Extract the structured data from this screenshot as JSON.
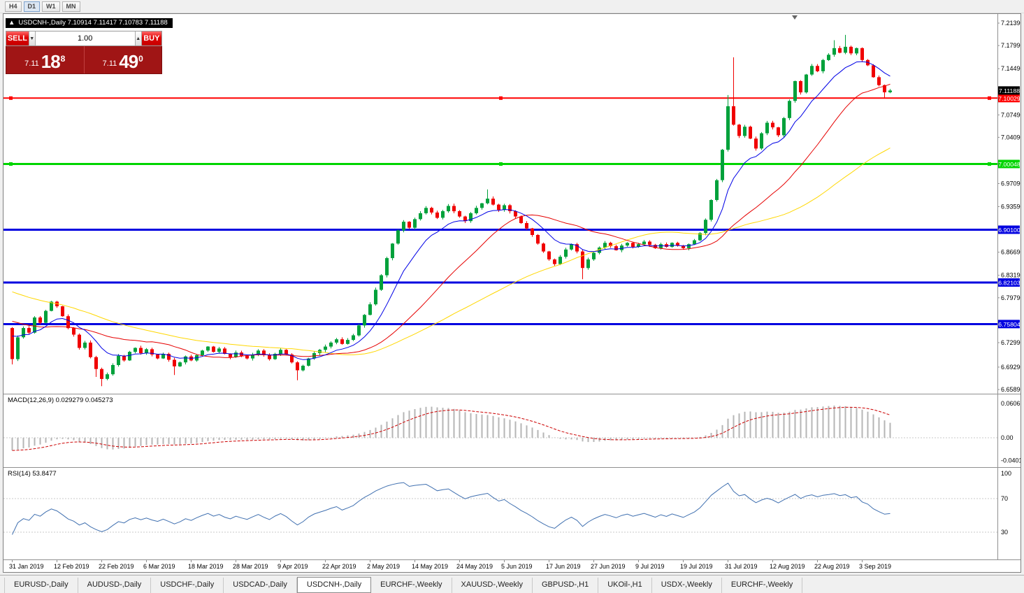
{
  "timeframe_toolbar": {
    "buttons": [
      {
        "label": "H4",
        "active": false
      },
      {
        "label": "D1",
        "active": true
      },
      {
        "label": "W1",
        "active": false
      },
      {
        "label": "MN",
        "active": false
      }
    ]
  },
  "chart": {
    "title_bar": {
      "collapse_arrow": "▲",
      "text": "USDCNH-,Daily  7.10914 7.11417 7.10783 7.11188"
    },
    "one_click": {
      "sell_label": "SELL",
      "buy_label": "BUY",
      "volume": "1.00",
      "volume_down_arrow": "▼",
      "volume_up_arrow": "▲",
      "sell_price": {
        "small": "7.11",
        "big": "18",
        "sup": "8"
      },
      "buy_price": {
        "small": "7.11",
        "big": "49",
        "sup": "0"
      }
    }
  },
  "chart_data": {
    "type": "candlestick",
    "title": "USDCNH-,Daily",
    "symbol": "USDCNH-",
    "timeframe": "Daily",
    "current_ohlc": {
      "open": 7.10914,
      "high": 7.11417,
      "low": 7.10783,
      "close": 7.11188
    },
    "first_open": 6.752,
    "closes": [
      6.705,
      6.738,
      6.752,
      6.745,
      6.768,
      6.76,
      6.778,
      6.792,
      6.785,
      6.77,
      6.752,
      6.742,
      6.722,
      6.73,
      6.708,
      6.69,
      6.675,
      6.682,
      6.696,
      6.71,
      6.703,
      6.716,
      6.722,
      6.714,
      6.72,
      6.712,
      6.706,
      6.713,
      6.704,
      6.694,
      6.7,
      6.709,
      6.703,
      6.711,
      6.718,
      6.724,
      6.716,
      6.721,
      6.713,
      6.708,
      6.715,
      6.71,
      6.706,
      6.712,
      6.718,
      6.711,
      6.705,
      6.713,
      6.719,
      6.712,
      6.7,
      6.688,
      6.695,
      6.706,
      6.714,
      6.719,
      6.724,
      6.73,
      6.735,
      6.728,
      6.734,
      6.741,
      6.756,
      6.772,
      6.788,
      6.81,
      6.832,
      6.858,
      6.88,
      6.9,
      6.913,
      6.904,
      6.917,
      6.926,
      6.934,
      6.927,
      6.919,
      6.929,
      6.937,
      6.929,
      6.921,
      6.914,
      6.926,
      6.934,
      6.941,
      6.948,
      6.939,
      6.931,
      6.938,
      6.929,
      6.921,
      6.911,
      6.903,
      6.893,
      6.88,
      6.868,
      6.856,
      6.849,
      6.86,
      6.871,
      6.879,
      6.868,
      6.843,
      6.856,
      6.866,
      6.874,
      6.881,
      6.876,
      6.87,
      6.877,
      6.881,
      6.875,
      6.879,
      6.883,
      6.878,
      6.873,
      6.879,
      6.875,
      6.881,
      6.877,
      6.873,
      6.879,
      6.885,
      6.896,
      6.916,
      6.946,
      6.976,
      7.022,
      7.088,
      7.06,
      7.043,
      7.057,
      7.039,
      7.024,
      7.047,
      7.063,
      7.056,
      7.044,
      7.07,
      7.096,
      7.126,
      7.109,
      7.136,
      7.149,
      7.141,
      7.158,
      7.166,
      7.176,
      7.169,
      7.178,
      7.168,
      7.176,
      7.158,
      7.15,
      7.132,
      7.12,
      7.10914,
      7.11188
    ],
    "warmup_closes": [
      6.915,
      6.908,
      6.918,
      6.902,
      6.895,
      6.903,
      6.89,
      6.882,
      6.889,
      6.878,
      6.872,
      6.88,
      6.868,
      6.86,
      6.866,
      6.868,
      6.862,
      6.871,
      6.855,
      6.848,
      6.852,
      6.84,
      6.835,
      6.842,
      6.83,
      6.822,
      6.828,
      6.815,
      6.81,
      6.818,
      6.805,
      6.798,
      6.806,
      6.795,
      6.788,
      6.795,
      6.782,
      6.776,
      6.784,
      6.772,
      6.765,
      6.772,
      6.76,
      6.755,
      6.762,
      6.752,
      6.746,
      6.753,
      6.744,
      6.74,
      6.748,
      6.738,
      6.734,
      6.742,
      6.75
    ],
    "wick_overrides": {
      "0": {
        "low": 6.697
      },
      "15": {
        "low": 6.678
      },
      "16": {
        "low": 6.664
      },
      "29": {
        "low": 6.681
      },
      "51": {
        "low": 6.673
      },
      "85": {
        "high": 6.962
      },
      "102": {
        "low": 6.826
      },
      "128": {
        "high": 7.105
      },
      "129": {
        "high": 7.162
      },
      "147": {
        "high": 7.188
      },
      "149": {
        "high": 7.196
      },
      "156": {
        "low": 7.1
      },
      "157": {
        "high": 7.11417,
        "low": 7.10783
      }
    },
    "x_labels": [
      "31 Jan 2019",
      "12 Feb 2019",
      "22 Feb 2019",
      "6 Mar 2019",
      "18 Mar 2019",
      "28 Mar 2019",
      "9 Apr 2019",
      "22 Apr 2019",
      "2 May 2019",
      "14 May 2019",
      "24 May 2019",
      "5 Jun 2019",
      "17 Jun 2019",
      "27 Jun 2019",
      "9 Jul 2019",
      "19 Jul 2019",
      "31 Jul 2019",
      "12 Aug 2019",
      "22 Aug 2019",
      "3 Sep 2019"
    ],
    "y_axis_ticks": [
      "7.21390",
      "7.17990",
      "7.14490",
      "7.07490",
      "7.04090",
      "6.97090",
      "6.93590",
      "6.86690",
      "6.83190",
      "6.79790",
      "6.72990",
      "6.69290",
      "6.65890"
    ],
    "horizontal_levels": [
      {
        "price": 7.10029,
        "label": "7.10029",
        "color": "#FF0000",
        "width": 2,
        "handles": true
      },
      {
        "price": 7.00048,
        "label": "7.00048",
        "color": "#00D500",
        "width": 3,
        "handles": true
      },
      {
        "price": 6.901,
        "label": "6.90100",
        "color": "#0000E0",
        "width": 3,
        "handles": false
      },
      {
        "price": 6.82103,
        "label": "6.82103",
        "color": "#0000E0",
        "width": 3,
        "handles": false
      },
      {
        "price": 6.75804,
        "label": "6.75804",
        "color": "#0000E0",
        "width": 3,
        "handles": false
      }
    ],
    "current_price": {
      "value": 7.11188,
      "label": "7.11188",
      "badge_color": "#000000"
    },
    "indicators": {
      "macd": {
        "label": "MACD(12,26,9) 0.029279 0.045273",
        "values_shown": [
          0.029279,
          0.045273
        ],
        "axis_labels": [
          "0.060674",
          "0.00",
          "-0.040152"
        ]
      },
      "rsi": {
        "label": "RSI(14) 53.8477",
        "value_shown": 53.8477,
        "axis_labels": [
          "100",
          "70",
          "30"
        ],
        "levels": [
          70,
          30
        ]
      }
    },
    "colors": {
      "up": "#00A13B",
      "down": "#F00000",
      "ma_fast": "#0000E6",
      "ma_mid": "#E60000",
      "ma_slow": "#FFD700",
      "macd_hist": "#B6B6B6",
      "macd_signal": "#CC0000",
      "rsi_line": "#4070B0"
    }
  },
  "bottom_tabs": [
    {
      "label": "EURUSD-,Daily",
      "active": false
    },
    {
      "label": "AUDUSD-,Daily",
      "active": false
    },
    {
      "label": "USDCHF-,Daily",
      "active": false
    },
    {
      "label": "USDCAD-,Daily",
      "active": false
    },
    {
      "label": "USDCNH-,Daily",
      "active": true
    },
    {
      "label": "EURCHF-,Weekly",
      "active": false
    },
    {
      "label": "XAUUSD-,Weekly",
      "active": false
    },
    {
      "label": "GBPUSD-,H1",
      "active": false
    },
    {
      "label": "UKOil-,H1",
      "active": false
    },
    {
      "label": "USDX-,Weekly",
      "active": false
    },
    {
      "label": "EURCHF-,Weekly",
      "active": false
    }
  ]
}
